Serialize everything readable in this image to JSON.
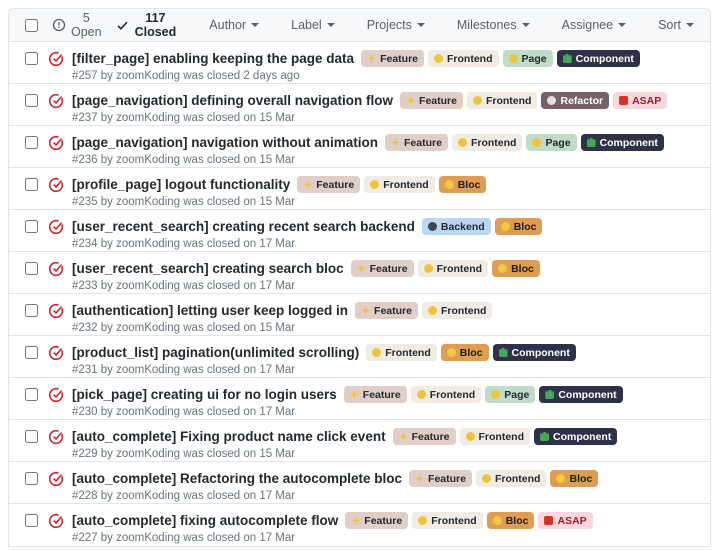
{
  "header": {
    "open_label": "5 Open",
    "closed_label": "117 Closed",
    "filters": [
      {
        "label": "Author"
      },
      {
        "label": "Label"
      },
      {
        "label": "Projects"
      },
      {
        "label": "Milestones"
      },
      {
        "label": "Assignee"
      },
      {
        "label": "Sort"
      }
    ]
  },
  "colors": {
    "closed_icon": "#cb2431",
    "open_icon": "#586069",
    "header_bg": "#f6f8fa",
    "border": "#e1e4e8",
    "title_text": "#24292e",
    "meta_text": "#6a737d"
  },
  "label_styles": {
    "Feature": {
      "bg": "#e0cec7",
      "fg": "#24292e",
      "icon": "sparkles",
      "icon_color": "#f0c33c"
    },
    "Frontend": {
      "bg": "#f0ece3",
      "fg": "#24292e",
      "icon": "yellow-circle",
      "icon_color": "#f0c33c"
    },
    "Page": {
      "bg": "#bfdcc8",
      "fg": "#24292e",
      "icon": "chick",
      "icon_color": "#f0c33c"
    },
    "Component": {
      "bg": "#2e3248",
      "fg": "#ffffff",
      "icon": "puzzle-piece",
      "icon_color": "#46a758"
    },
    "Refactor": {
      "bg": "#75616a",
      "fg": "#ffffff",
      "icon": "mechanic",
      "icon_color": "#e3e0dd"
    },
    "ASAP": {
      "bg": "#f9d7dd",
      "fg": "#9e1c28",
      "icon": "sos",
      "icon_color": "#d93025"
    },
    "Backend": {
      "bg": "#b9d6f2",
      "fg": "#24292e",
      "icon": "black-circle",
      "icon_color": "#40464e"
    },
    "Bloc": {
      "bg": "#de9d51",
      "fg": "#1b1f23",
      "icon": "construction",
      "icon_color": "#f2c744"
    }
  },
  "issues": [
    {
      "title": "[filter_page] enabling keeping the page data",
      "labels": [
        "Feature",
        "Frontend",
        "Page",
        "Component"
      ],
      "meta": "#257 by zoomKoding was closed 2 days ago"
    },
    {
      "title": "[page_navigation] defining overall navigation flow",
      "labels": [
        "Feature",
        "Frontend",
        "Refactor",
        "ASAP"
      ],
      "meta": "#237 by zoomKoding was closed on 15 Mar"
    },
    {
      "title": "[page_navigation] navigation without animation",
      "labels": [
        "Feature",
        "Frontend",
        "Page",
        "Component"
      ],
      "meta": "#236 by zoomKoding was closed on 15 Mar"
    },
    {
      "title": "[profile_page] logout functionality",
      "labels": [
        "Feature",
        "Frontend",
        "Bloc"
      ],
      "meta": "#235 by zoomKoding was closed on 15 Mar"
    },
    {
      "title": "[user_recent_search] creating recent search backend",
      "labels": [
        "Backend",
        "Bloc"
      ],
      "meta": "#234 by zoomKoding was closed on 17 Mar"
    },
    {
      "title": "[user_recent_search] creating search bloc",
      "labels": [
        "Feature",
        "Frontend",
        "Bloc"
      ],
      "meta": "#233 by zoomKoding was closed on 17 Mar"
    },
    {
      "title": "[authentication] letting user keep logged in",
      "labels": [
        "Feature",
        "Frontend"
      ],
      "meta": "#232 by zoomKoding was closed on 15 Mar"
    },
    {
      "title": "[product_list] pagination(unlimited scrolling)",
      "labels": [
        "Frontend",
        "Bloc",
        "Component"
      ],
      "meta": "#231 by zoomKoding was closed on 17 Mar"
    },
    {
      "title": "[pick_page] creating ui for no login users",
      "labels": [
        "Feature",
        "Frontend",
        "Page",
        "Component"
      ],
      "meta": "#230 by zoomKoding was closed on 17 Mar"
    },
    {
      "title": "[auto_complete] Fixing product name click event",
      "labels": [
        "Feature",
        "Frontend",
        "Component"
      ],
      "meta": "#229 by zoomKoding was closed on 15 Mar"
    },
    {
      "title": "[auto_complete] Refactoring the autocomplete bloc",
      "labels": [
        "Feature",
        "Frontend",
        "Bloc"
      ],
      "meta": "#228 by zoomKoding was closed on 17 Mar"
    },
    {
      "title": "[auto_complete] fixing autocomplete flow",
      "labels": [
        "Feature",
        "Frontend",
        "Bloc",
        "ASAP"
      ],
      "meta": "#227 by zoomKoding was closed on 17 Mar"
    }
  ]
}
